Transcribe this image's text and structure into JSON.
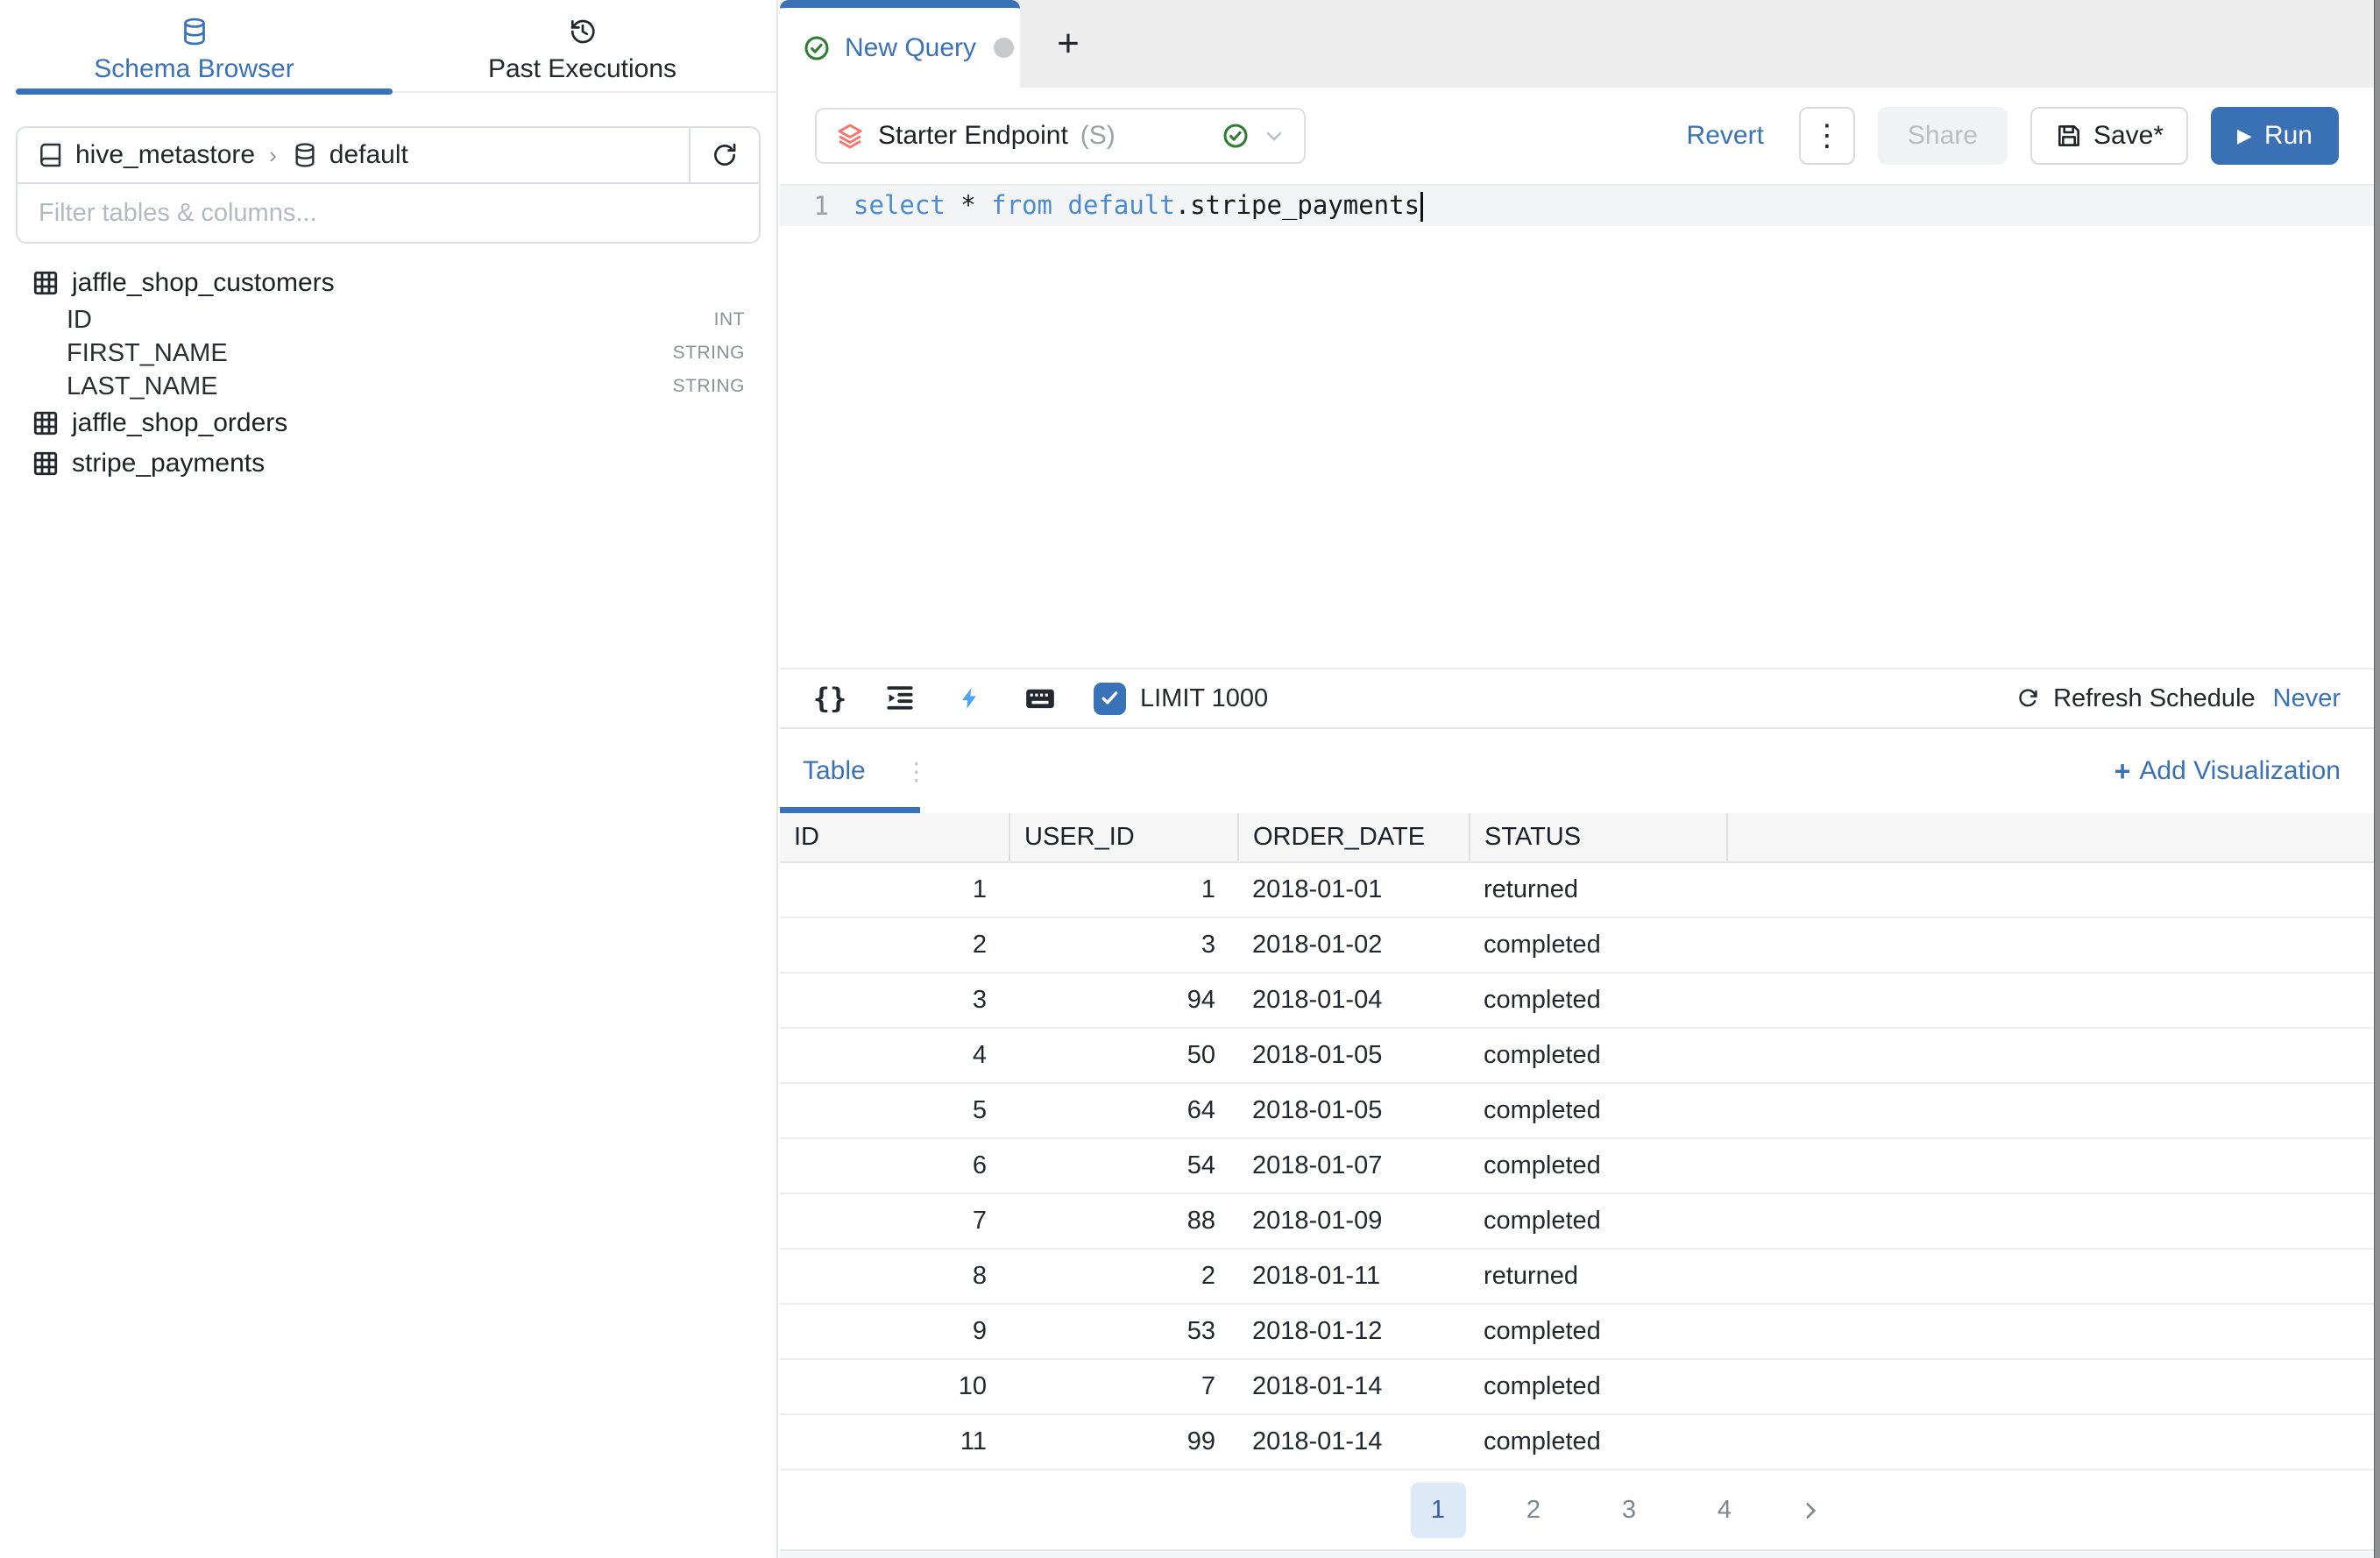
{
  "sidebar": {
    "tabs": [
      {
        "label": "Schema Browser",
        "icon": "database-icon",
        "active": true
      },
      {
        "label": "Past Executions",
        "icon": "history-icon",
        "active": false
      }
    ],
    "breadcrumb": {
      "catalog": "hive_metastore",
      "separator": "›",
      "schema": "default"
    },
    "filter_placeholder": "Filter tables & columns...",
    "tables": [
      {
        "name": "jaffle_shop_customers",
        "columns": [
          {
            "name": "ID",
            "type": "INT"
          },
          {
            "name": "FIRST_NAME",
            "type": "STRING"
          },
          {
            "name": "LAST_NAME",
            "type": "STRING"
          }
        ]
      },
      {
        "name": "jaffle_shop_orders",
        "columns": []
      },
      {
        "name": "stripe_payments",
        "columns": []
      }
    ]
  },
  "query_tabs": {
    "active_tab_label": "New Query",
    "add_tab_label": "+"
  },
  "toolbar": {
    "endpoint": {
      "name": "Starter Endpoint",
      "size": "(S)"
    },
    "revert_label": "Revert",
    "kebab_label": "⋮",
    "share_label": "Share",
    "save_label": "Save*",
    "run_label": "Run",
    "run_play_glyph": "▶"
  },
  "editor": {
    "lines": [
      {
        "number": "1",
        "tokens": [
          {
            "text": "select",
            "type": "keyword"
          },
          {
            "text": " ",
            "type": "plain"
          },
          {
            "text": "*",
            "type": "plain"
          },
          {
            "text": " ",
            "type": "plain"
          },
          {
            "text": "from",
            "type": "keyword"
          },
          {
            "text": " ",
            "type": "plain"
          },
          {
            "text": "default",
            "type": "keyword"
          },
          {
            "text": ".",
            "type": "plain"
          },
          {
            "text": "stripe_payments",
            "type": "plain"
          }
        ]
      }
    ],
    "footer": {
      "limit_label": "LIMIT 1000",
      "limit_checked": true,
      "refresh_schedule_label": "Refresh Schedule",
      "refresh_schedule_value": "Never"
    }
  },
  "results": {
    "viz_tab_label": "Table",
    "viz_kebab_label": "⋮",
    "add_visualization_label": "Add Visualization",
    "add_visualization_plus": "+",
    "table": {
      "columns": [
        {
          "label": "ID",
          "align": "right"
        },
        {
          "label": "USER_ID",
          "align": "right"
        },
        {
          "label": "ORDER_DATE",
          "align": "left"
        },
        {
          "label": "STATUS",
          "align": "left"
        },
        {
          "label": "",
          "align": "left"
        }
      ],
      "rows": [
        [
          "1",
          "1",
          "2018-01-01",
          "returned"
        ],
        [
          "2",
          "3",
          "2018-01-02",
          "completed"
        ],
        [
          "3",
          "94",
          "2018-01-04",
          "completed"
        ],
        [
          "4",
          "50",
          "2018-01-05",
          "completed"
        ],
        [
          "5",
          "64",
          "2018-01-05",
          "completed"
        ],
        [
          "6",
          "54",
          "2018-01-07",
          "completed"
        ],
        [
          "7",
          "88",
          "2018-01-09",
          "completed"
        ],
        [
          "8",
          "2",
          "2018-01-11",
          "returned"
        ],
        [
          "9",
          "53",
          "2018-01-12",
          "completed"
        ],
        [
          "10",
          "7",
          "2018-01-14",
          "completed"
        ],
        [
          "11",
          "99",
          "2018-01-14",
          "completed"
        ]
      ]
    },
    "pagination": {
      "pages": [
        "1",
        "2",
        "3",
        "4"
      ],
      "active_page": "1"
    }
  },
  "colors": {
    "accent_blue": "#3a72b7",
    "run_button_blue": "#3a70b4",
    "keyword_blue": "#4a8bd0",
    "success_green": "#2e7d32",
    "endpoint_coral": "#f4756b",
    "bolt_blue": "#4ba3f5"
  }
}
